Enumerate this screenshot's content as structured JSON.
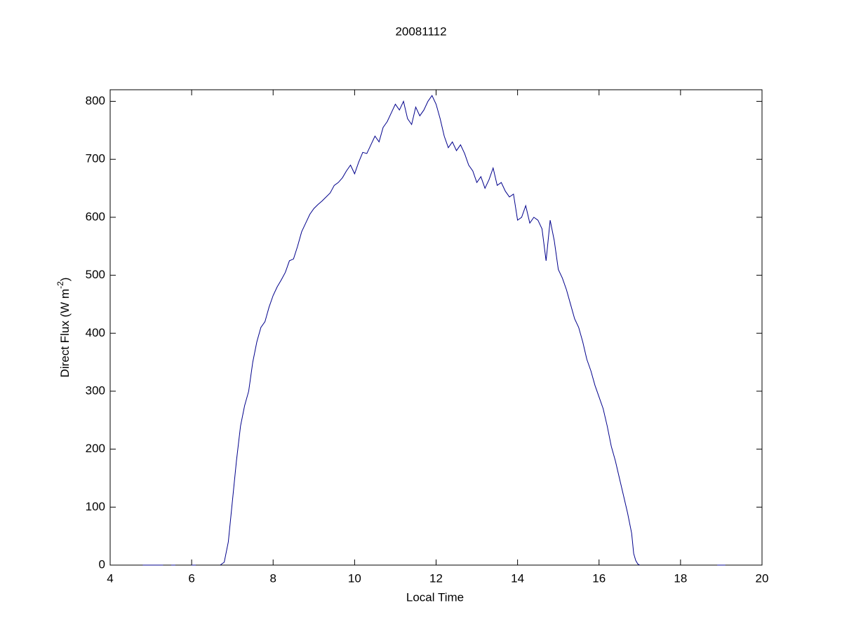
{
  "chart_data": {
    "type": "line",
    "title": "20081112",
    "xlabel": "Local Time",
    "ylabel": {
      "text": "Direct Flux (W m",
      "sup": "-2",
      "end": ")"
    },
    "xlim": [
      4,
      20
    ],
    "xticks": [
      4,
      6,
      8,
      10,
      12,
      14,
      16,
      18,
      20
    ],
    "ylim": [
      0,
      820
    ],
    "yticks": [
      0,
      100,
      200,
      300,
      400,
      500,
      600,
      700,
      800
    ],
    "grid": false,
    "series": [
      {
        "color": "#00008b",
        "x": [
          4.8,
          5.0,
          5.3,
          null,
          5.5,
          5.6,
          null,
          6.0,
          6.1,
          null,
          6.7,
          6.8,
          6.9,
          7.0,
          7.1,
          7.2,
          7.3,
          7.4,
          7.5,
          7.6,
          7.7,
          7.8,
          7.9,
          8.0,
          8.1,
          8.2,
          8.3,
          8.4,
          8.5,
          8.6,
          8.7,
          8.8,
          8.9,
          9.0,
          9.1,
          9.2,
          9.3,
          9.4,
          9.5,
          9.6,
          9.7,
          9.8,
          9.9,
          10.0,
          10.1,
          10.2,
          10.3,
          10.4,
          10.5,
          10.6,
          10.7,
          10.8,
          10.9,
          11.0,
          11.1,
          11.2,
          11.3,
          11.4,
          11.5,
          11.6,
          11.7,
          11.8,
          11.9,
          12.0,
          12.1,
          12.2,
          12.3,
          12.4,
          12.5,
          12.6,
          12.7,
          12.8,
          12.9,
          13.0,
          13.1,
          13.2,
          13.3,
          13.4,
          13.5,
          13.6,
          13.7,
          13.8,
          13.9,
          14.0,
          14.1,
          14.2,
          14.3,
          14.4,
          14.5,
          14.6,
          14.7,
          14.8,
          14.9,
          15.0,
          15.1,
          15.2,
          15.3,
          15.4,
          15.5,
          15.6,
          15.7,
          15.8,
          15.9,
          16.0,
          16.1,
          16.2,
          16.3,
          16.4,
          16.5,
          16.6,
          16.7,
          16.8,
          16.85,
          16.9,
          16.95,
          17.0,
          null,
          18.9,
          19.1
        ],
        "values": [
          0,
          0,
          0,
          null,
          0,
          0,
          null,
          0,
          0,
          null,
          0,
          5,
          40,
          110,
          180,
          240,
          275,
          300,
          350,
          385,
          410,
          420,
          445,
          465,
          480,
          492,
          505,
          525,
          528,
          550,
          575,
          590,
          605,
          615,
          622,
          628,
          635,
          642,
          655,
          660,
          668,
          680,
          690,
          675,
          695,
          712,
          710,
          725,
          740,
          730,
          755,
          765,
          780,
          795,
          785,
          800,
          770,
          760,
          790,
          775,
          785,
          800,
          810,
          795,
          770,
          740,
          720,
          730,
          715,
          725,
          710,
          690,
          680,
          660,
          670,
          650,
          665,
          685,
          655,
          660,
          645,
          635,
          640,
          595,
          600,
          620,
          590,
          600,
          595,
          580,
          525,
          595,
          560,
          510,
          495,
          475,
          450,
          425,
          410,
          385,
          355,
          335,
          310,
          290,
          270,
          240,
          205,
          180,
          150,
          120,
          90,
          55,
          20,
          8,
          2,
          0,
          null,
          0,
          0
        ]
      }
    ]
  }
}
